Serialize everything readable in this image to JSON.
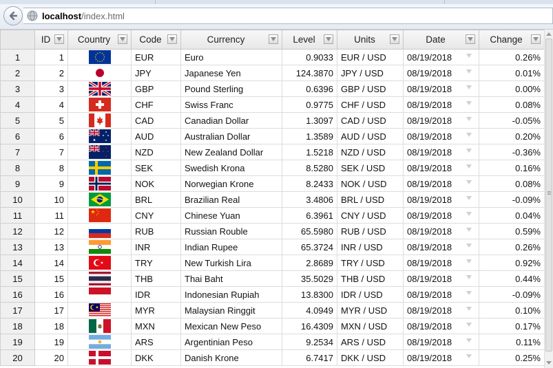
{
  "browser": {
    "url_host": "localhost",
    "url_path": "/index.html",
    "back_icon": "back-arrow-icon",
    "site_icon": "globe-icon"
  },
  "grid": {
    "columns": [
      {
        "key": "id",
        "label": "ID"
      },
      {
        "key": "country",
        "label": "Country"
      },
      {
        "key": "code",
        "label": "Code"
      },
      {
        "key": "currency",
        "label": "Currency"
      },
      {
        "key": "level",
        "label": "Level"
      },
      {
        "key": "units",
        "label": "Units"
      },
      {
        "key": "date",
        "label": "Date"
      },
      {
        "key": "change",
        "label": "Change"
      }
    ],
    "rows": [
      {
        "n": "1",
        "id": "1",
        "flag": "EU",
        "code": "EUR",
        "currency": "Euro",
        "level": "0.9033",
        "units": "EUR / USD",
        "date": "08/19/2018",
        "change": "0.26%"
      },
      {
        "n": "2",
        "id": "2",
        "flag": "JP",
        "code": "JPY",
        "currency": "Japanese Yen",
        "level": "124.3870",
        "units": "JPY / USD",
        "date": "08/19/2018",
        "change": "0.01%"
      },
      {
        "n": "3",
        "id": "3",
        "flag": "GB",
        "code": "GBP",
        "currency": "Pound Sterling",
        "level": "0.6396",
        "units": "GBP / USD",
        "date": "08/19/2018",
        "change": "0.00%"
      },
      {
        "n": "4",
        "id": "4",
        "flag": "CH",
        "code": "CHF",
        "currency": "Swiss Franc",
        "level": "0.9775",
        "units": "CHF / USD",
        "date": "08/19/2018",
        "change": "0.08%"
      },
      {
        "n": "5",
        "id": "5",
        "flag": "CA",
        "code": "CAD",
        "currency": "Canadian Dollar",
        "level": "1.3097",
        "units": "CAD / USD",
        "date": "08/19/2018",
        "change": "-0.05%"
      },
      {
        "n": "6",
        "id": "6",
        "flag": "AU",
        "code": "AUD",
        "currency": "Australian Dollar",
        "level": "1.3589",
        "units": "AUD / USD",
        "date": "08/19/2018",
        "change": "0.20%"
      },
      {
        "n": "7",
        "id": "7",
        "flag": "NZ",
        "code": "NZD",
        "currency": "New Zealand Dollar",
        "level": "1.5218",
        "units": "NZD / USD",
        "date": "08/19/2018",
        "change": "-0.36%"
      },
      {
        "n": "8",
        "id": "8",
        "flag": "SE",
        "code": "SEK",
        "currency": "Swedish Krona",
        "level": "8.5280",
        "units": "SEK / USD",
        "date": "08/19/2018",
        "change": "0.16%"
      },
      {
        "n": "9",
        "id": "9",
        "flag": "NO",
        "code": "NOK",
        "currency": "Norwegian Krone",
        "level": "8.2433",
        "units": "NOK / USD",
        "date": "08/19/2018",
        "change": "0.08%"
      },
      {
        "n": "10",
        "id": "10",
        "flag": "BR",
        "code": "BRL",
        "currency": "Brazilian Real",
        "level": "3.4806",
        "units": "BRL / USD",
        "date": "08/19/2018",
        "change": "-0.09%"
      },
      {
        "n": "11",
        "id": "11",
        "flag": "CN",
        "code": "CNY",
        "currency": "Chinese Yuan",
        "level": "6.3961",
        "units": "CNY / USD",
        "date": "08/19/2018",
        "change": "0.04%"
      },
      {
        "n": "12",
        "id": "12",
        "flag": "RU",
        "code": "RUB",
        "currency": "Russian Rouble",
        "level": "65.5980",
        "units": "RUB / USD",
        "date": "08/19/2018",
        "change": "0.59%"
      },
      {
        "n": "13",
        "id": "13",
        "flag": "IN",
        "code": "INR",
        "currency": "Indian Rupee",
        "level": "65.3724",
        "units": "INR / USD",
        "date": "08/19/2018",
        "change": "0.26%"
      },
      {
        "n": "14",
        "id": "14",
        "flag": "TR",
        "code": "TRY",
        "currency": "New Turkish Lira",
        "level": "2.8689",
        "units": "TRY / USD",
        "date": "08/19/2018",
        "change": "0.92%"
      },
      {
        "n": "15",
        "id": "15",
        "flag": "TH",
        "code": "THB",
        "currency": "Thai Baht",
        "level": "35.5029",
        "units": "THB / USD",
        "date": "08/19/2018",
        "change": "0.44%"
      },
      {
        "n": "16",
        "id": "16",
        "flag": "ID",
        "code": "IDR",
        "currency": "Indonesian Rupiah",
        "level": "13.8300",
        "units": "IDR / USD",
        "date": "08/19/2018",
        "change": "-0.09%"
      },
      {
        "n": "17",
        "id": "17",
        "flag": "MY",
        "code": "MYR",
        "currency": "Malaysian Ringgit",
        "level": "4.0949",
        "units": "MYR / USD",
        "date": "08/19/2018",
        "change": "0.10%"
      },
      {
        "n": "18",
        "id": "18",
        "flag": "MX",
        "code": "MXN",
        "currency": "Mexican New Peso",
        "level": "16.4309",
        "units": "MXN / USD",
        "date": "08/19/2018",
        "change": "0.17%"
      },
      {
        "n": "19",
        "id": "19",
        "flag": "AR",
        "code": "ARS",
        "currency": "Argentinian Peso",
        "level": "9.2534",
        "units": "ARS / USD",
        "date": "08/19/2018",
        "change": "0.11%"
      },
      {
        "n": "20",
        "id": "20",
        "flag": "DK",
        "code": "DKK",
        "currency": "Danish Krone",
        "level": "6.7417",
        "units": "DKK / USD",
        "date": "08/19/2018",
        "change": "0.25%"
      }
    ]
  }
}
